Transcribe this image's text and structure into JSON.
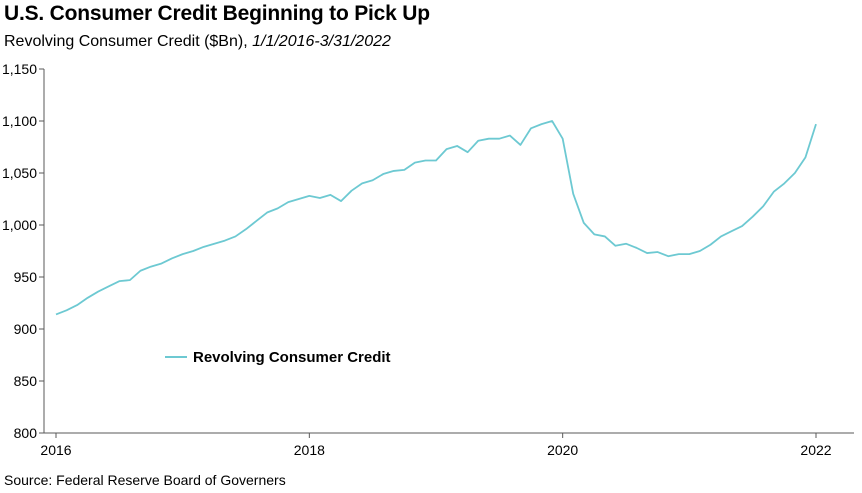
{
  "header": {
    "title": "U.S. Consumer Credit Beginning to Pick Up",
    "subtitle_main": "Revolving Consumer Credit ($Bn),",
    "subtitle_range": "1/1/2016-3/31/2022"
  },
  "footer": {
    "source": "Source: Federal Reserve Board of Governers"
  },
  "colors": {
    "line": "#6dc9d2",
    "axis": "#595959"
  },
  "chart_data": {
    "type": "line",
    "title": "U.S. Consumer Credit Beginning to Pick Up",
    "subtitle": "Revolving Consumer Credit ($Bn), 1/1/2016-3/31/2022",
    "xlabel": "",
    "ylabel": "",
    "ylim": [
      800,
      1150
    ],
    "xlim": [
      2016.0,
      2022.25
    ],
    "grid": false,
    "legend_position": "center-left",
    "y_ticks": [
      "800",
      "850",
      "900",
      "950",
      "1,000",
      "1,050",
      "1,100",
      "1,150"
    ],
    "x_ticks": [
      "2016",
      "2018",
      "2020",
      "2022"
    ],
    "series": [
      {
        "name": "Revolving Consumer Credit",
        "start": "2016-01",
        "frequency": "monthly",
        "values": [
          914,
          918,
          923,
          930,
          936,
          941,
          946,
          947,
          956,
          960,
          963,
          968,
          972,
          975,
          979,
          982,
          985,
          989,
          996,
          1004,
          1012,
          1016,
          1022,
          1025,
          1028,
          1026,
          1029,
          1023,
          1033,
          1040,
          1043,
          1049,
          1052,
          1053,
          1060,
          1062,
          1062,
          1073,
          1076,
          1070,
          1081,
          1083,
          1083,
          1086,
          1077,
          1093,
          1097,
          1100,
          1083,
          1030,
          1002,
          991,
          989,
          980,
          982,
          978,
          973,
          974,
          970,
          972,
          972,
          975,
          981,
          989,
          994,
          999,
          1008,
          1018,
          1032,
          1040,
          1050,
          1065,
          1097
        ]
      }
    ]
  }
}
